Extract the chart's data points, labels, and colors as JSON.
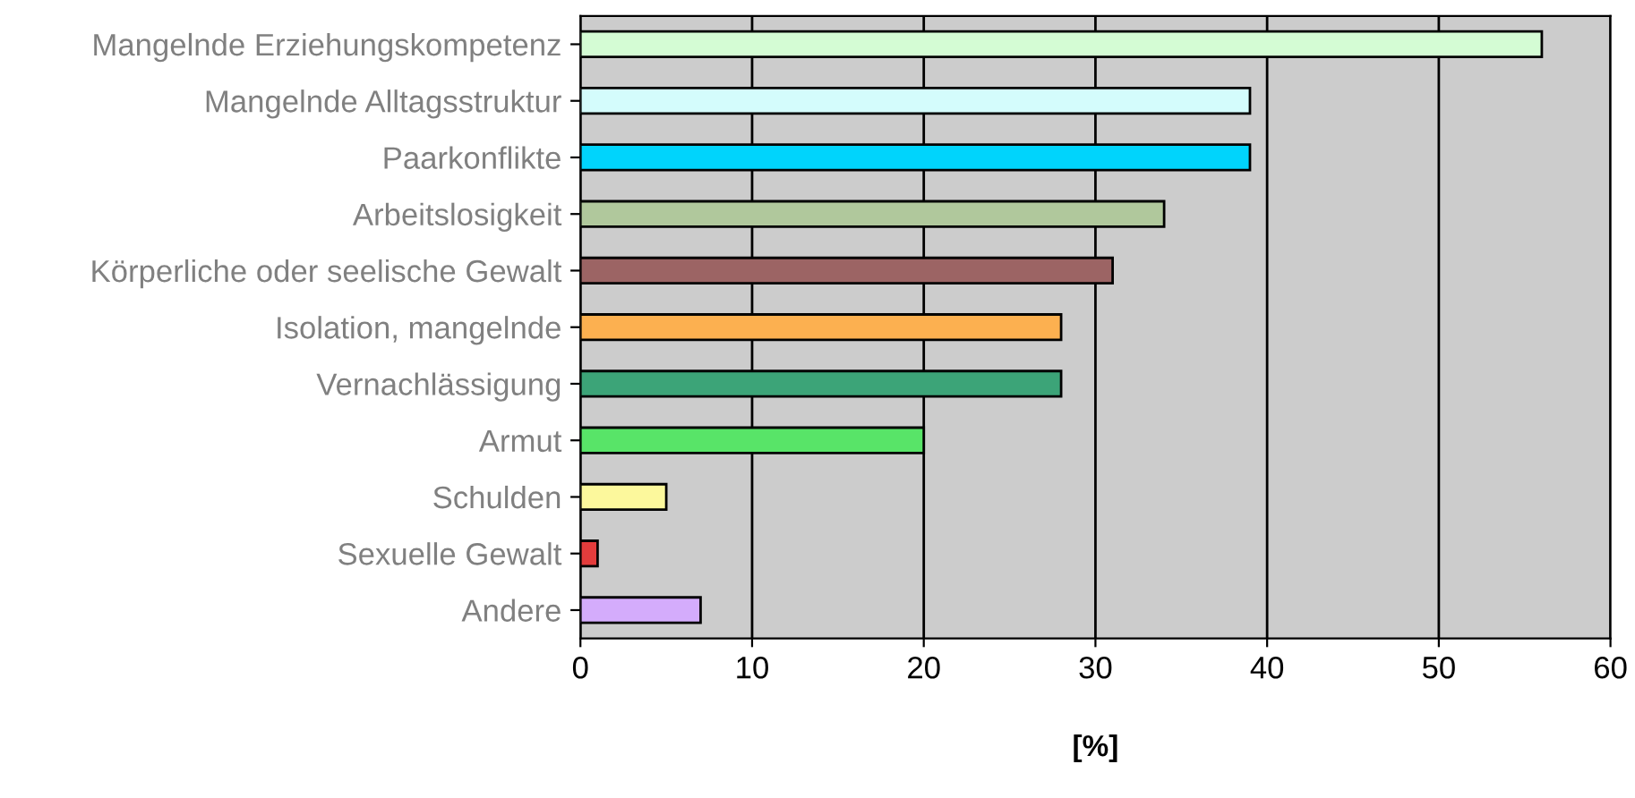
{
  "chart_data": {
    "type": "bar",
    "orientation": "horizontal",
    "xlabel": "[%]",
    "categories": [
      "Mangelnde Erziehungskompetenz",
      "Mangelnde Alltagsstruktur",
      "Paarkonflikte",
      "Arbeitslosigkeit",
      "Körperliche oder seelische Gewalt",
      "Isolation, mangelnde",
      "Vernachlässigung",
      "Armut",
      "Schulden",
      "Sexuelle Gewalt",
      "Andere"
    ],
    "values": [
      56,
      39,
      39,
      34,
      31,
      28,
      28,
      20,
      5,
      1,
      7
    ],
    "colors": [
      "#d4fcd4",
      "#d4fcfc",
      "#00d4fc",
      "#b0c89c",
      "#9c6464",
      "#fcb050",
      "#3ca478",
      "#58e468",
      "#fcf89c",
      "#e43c3c",
      "#d4acfc"
    ],
    "xlim": [
      0,
      60
    ],
    "xticks": [
      0,
      10,
      20,
      30,
      40,
      50,
      60
    ],
    "grid": "x"
  }
}
